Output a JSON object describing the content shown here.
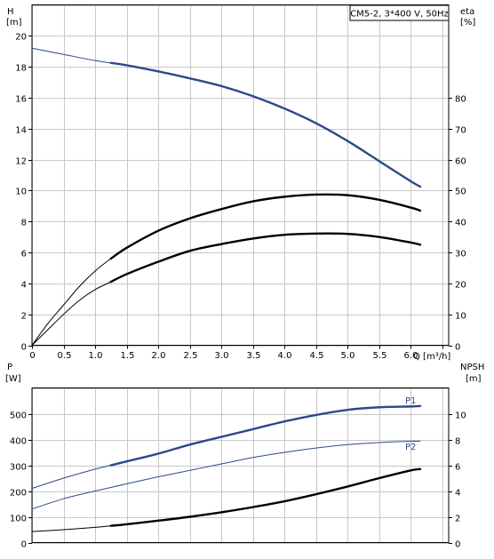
{
  "colors": {
    "background": "#ffffff",
    "grid": "#c8c8c8",
    "frame": "#000000",
    "head_curve": "#2b4a8b",
    "power_curve": "#2b4a8b",
    "efficiency_curve": "#000000",
    "npsh_curve": "#000000"
  },
  "chart_data": [
    {
      "type": "line",
      "panel": "top",
      "title": "CM5-2, 3*400 V, 50Hz",
      "xlabel": "Q [m³/h]",
      "ylabel_left": "H",
      "ylabel_left_unit": "[m]",
      "ylabel_right": "eta",
      "ylabel_right_unit": "[%]",
      "xlim": [
        0,
        6.6
      ],
      "ylim_left": [
        0,
        22
      ],
      "ylim_right": [
        0,
        110
      ],
      "x_ticks": [
        "0",
        "0.5",
        "1.0",
        "1.5",
        "2.0",
        "2.5",
        "3.0",
        "3.5",
        "4.0",
        "4.5",
        "5.0",
        "5.5",
        "6.0"
      ],
      "x_tick_values": [
        0,
        0.5,
        1.0,
        1.5,
        2.0,
        2.5,
        3.0,
        3.5,
        4.0,
        4.5,
        5.0,
        5.5,
        6.0
      ],
      "y_left_ticks": [
        "0",
        "2",
        "4",
        "6",
        "8",
        "10",
        "12",
        "14",
        "16",
        "18",
        "20"
      ],
      "y_left_tick_values": [
        0,
        2,
        4,
        6,
        8,
        10,
        12,
        14,
        16,
        18,
        20
      ],
      "y_right_ticks": [
        "0",
        "10",
        "20",
        "30",
        "40",
        "50",
        "60",
        "70",
        "80"
      ],
      "y_right_tick_values": [
        0,
        10,
        20,
        30,
        40,
        50,
        60,
        70,
        80
      ],
      "grid": true,
      "series": [
        {
          "key": "head",
          "axis": "left",
          "x": [
            0,
            0.5,
            1.0,
            1.25,
            1.5,
            2.0,
            2.5,
            3.0,
            3.5,
            4.0,
            4.5,
            5.0,
            5.5,
            6.0,
            6.15
          ],
          "values": [
            19.2,
            18.8,
            18.4,
            18.25,
            18.1,
            17.7,
            17.25,
            16.75,
            16.1,
            15.3,
            14.35,
            13.2,
            11.9,
            10.6,
            10.25
          ],
          "bold_from_x": 1.25
        },
        {
          "key": "eta_total",
          "axis": "right",
          "x": [
            0,
            0.25,
            0.5,
            0.75,
            1.0,
            1.25,
            1.5,
            2.0,
            2.5,
            3.0,
            3.5,
            4.0,
            4.5,
            5.0,
            5.5,
            6.0,
            6.15
          ],
          "values": [
            0,
            7,
            13,
            19,
            24,
            28,
            31.5,
            37,
            41,
            44,
            46.5,
            48,
            48.7,
            48.5,
            47,
            44.5,
            43.5
          ],
          "bold_from_x": 1.25
        },
        {
          "key": "eta_pump",
          "axis": "right",
          "x": [
            0,
            0.25,
            0.5,
            0.75,
            1.0,
            1.25,
            1.5,
            2.0,
            2.5,
            3.0,
            3.5,
            4.0,
            4.5,
            5.0,
            5.5,
            6.0,
            6.15
          ],
          "values": [
            0,
            5,
            10,
            14.5,
            18,
            20.5,
            23,
            27,
            30.5,
            32.7,
            34.5,
            35.7,
            36.1,
            36,
            35,
            33.2,
            32.5
          ],
          "bold_from_x": 1.25
        }
      ]
    },
    {
      "type": "line",
      "panel": "bottom",
      "ylabel_left": "P",
      "ylabel_left_unit": "[W]",
      "ylabel_right": "NPSH",
      "ylabel_right_unit": "[m]",
      "xlim": [
        0,
        6.6
      ],
      "ylim_left": [
        0,
        600
      ],
      "ylim_right": [
        0,
        12
      ],
      "y_left_ticks": [
        "0",
        "100",
        "200",
        "300",
        "400",
        "500"
      ],
      "y_left_tick_values": [
        0,
        100,
        200,
        300,
        400,
        500
      ],
      "y_right_ticks": [
        "0",
        "2",
        "4",
        "6",
        "8",
        "10"
      ],
      "y_right_tick_values": [
        0,
        2,
        4,
        6,
        8,
        10
      ],
      "grid": true,
      "series": [
        {
          "key": "p1",
          "name": "P1",
          "axis": "left",
          "x": [
            0,
            0.5,
            1.0,
            1.25,
            1.5,
            2.0,
            2.5,
            3.0,
            3.5,
            4.0,
            4.5,
            5.0,
            5.5,
            6.0,
            6.15
          ],
          "values": [
            210,
            250,
            285,
            300,
            315,
            345,
            380,
            410,
            440,
            470,
            495,
            515,
            525,
            528,
            530
          ],
          "bold_from_x": 1.25
        },
        {
          "key": "p2",
          "name": "P2",
          "axis": "left",
          "x": [
            0,
            0.5,
            1.0,
            1.5,
            2.0,
            2.5,
            3.0,
            3.5,
            4.0,
            4.5,
            5.0,
            5.5,
            6.0,
            6.15
          ],
          "values": [
            130,
            170,
            200,
            228,
            255,
            280,
            305,
            330,
            350,
            367,
            380,
            388,
            393,
            393
          ],
          "bold_from_x": null
        },
        {
          "key": "npsh",
          "axis": "right",
          "x": [
            0,
            0.5,
            1.0,
            1.25,
            1.5,
            2.0,
            2.5,
            3.0,
            3.5,
            4.0,
            4.5,
            5.0,
            5.5,
            6.0,
            6.15
          ],
          "values": [
            0.85,
            1.0,
            1.18,
            1.3,
            1.42,
            1.7,
            2.0,
            2.35,
            2.75,
            3.2,
            3.75,
            4.35,
            5.0,
            5.6,
            5.7
          ],
          "bold_from_x": 1.25
        }
      ]
    }
  ]
}
